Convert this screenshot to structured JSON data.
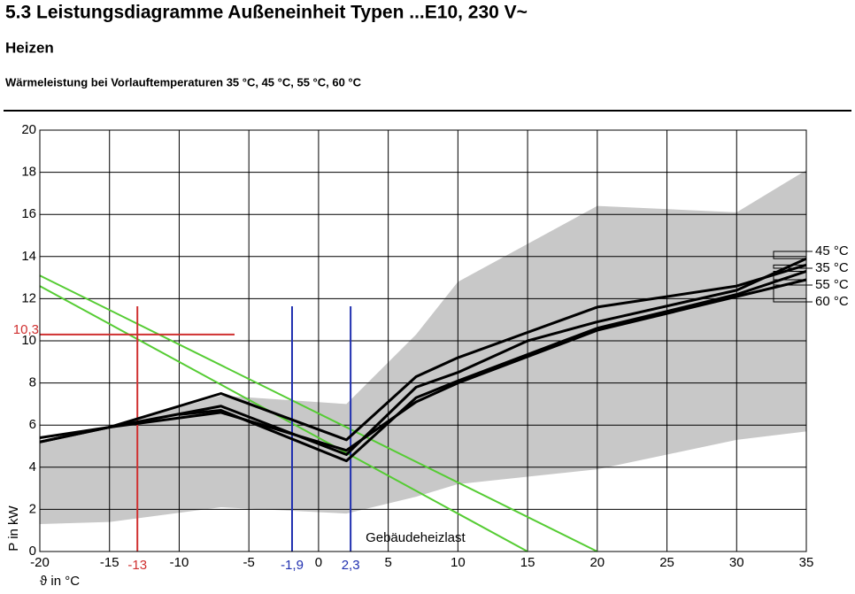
{
  "header": {
    "title": "5.3 Leistungsdiagramme Außeneinheit Typen ...E10, 230 V~",
    "subtitle": "Heizen",
    "caption": "Wärmeleistung bei Vorlauftemperaturen 35 °C, 45 °C, 55 °C, 60 °C"
  },
  "chart_data": {
    "type": "line",
    "xlabel": "ϑ in °C",
    "ylabel": "P in kW",
    "xlim": [
      -20,
      35
    ],
    "ylim": [
      0,
      20
    ],
    "xticks": [
      -20,
      -15,
      -10,
      -5,
      0,
      5,
      10,
      15,
      20,
      25,
      30,
      35
    ],
    "yticks": [
      0,
      2,
      4,
      6,
      8,
      10,
      12,
      14,
      16,
      18,
      20
    ],
    "grid": true,
    "band": {
      "color": "#c8c8c8",
      "x": [
        -20,
        -15,
        -7,
        2,
        7,
        10,
        20,
        30,
        35
      ],
      "upper": [
        5.2,
        5.9,
        7.4,
        7.0,
        10.3,
        12.8,
        16.4,
        16.1,
        18.1
      ],
      "lower": [
        1.3,
        1.4,
        2.1,
        1.8,
        2.6,
        3.2,
        3.9,
        5.3,
        5.7
      ]
    },
    "series": [
      {
        "name": "45 °C",
        "color": "#000000",
        "x": [
          -20,
          -15,
          -7,
          2,
          7,
          10,
          15,
          20,
          30,
          35
        ],
        "values": [
          5.4,
          5.9,
          6.9,
          4.6,
          7.8,
          8.5,
          10.0,
          10.9,
          12.4,
          13.9
        ]
      },
      {
        "name": "35 °C",
        "color": "#000000",
        "x": [
          -20,
          -15,
          -7,
          2,
          7,
          10,
          20,
          30,
          35
        ],
        "values": [
          5.2,
          5.9,
          7.5,
          5.3,
          8.3,
          9.2,
          11.6,
          12.6,
          13.6
        ]
      },
      {
        "name": "55 °C",
        "color": "#000000",
        "x": [
          -10,
          -7,
          2,
          7,
          10,
          20,
          30,
          35
        ],
        "values": [
          6.5,
          6.7,
          4.3,
          7.3,
          8.1,
          10.6,
          12.2,
          13.3
        ]
      },
      {
        "name": "60 °C",
        "color": "#000000",
        "x": [
          -20,
          -15,
          -7,
          2,
          7,
          10,
          20,
          30,
          35
        ],
        "values": [
          5.2,
          5.9,
          6.6,
          4.8,
          7.1,
          8.0,
          10.5,
          12.1,
          12.9
        ]
      }
    ],
    "heat_load": {
      "name": "Gebäudeheizlast",
      "color": "#55cc33",
      "lines": [
        {
          "x": [
            -20,
            15
          ],
          "values": [
            12.6,
            0
          ]
        },
        {
          "x": [
            -20,
            20
          ],
          "values": [
            13.1,
            0
          ]
        }
      ]
    },
    "annotations": [
      {
        "label": "-13",
        "x": -13,
        "color": "#d03030"
      },
      {
        "label": "10,3",
        "y": 10.3,
        "color": "#d03030"
      },
      {
        "label": "-1,9",
        "x": -1.9,
        "color": "#2030b0"
      },
      {
        "label": "2,3",
        "x": 2.3,
        "color": "#2030b0"
      }
    ]
  }
}
